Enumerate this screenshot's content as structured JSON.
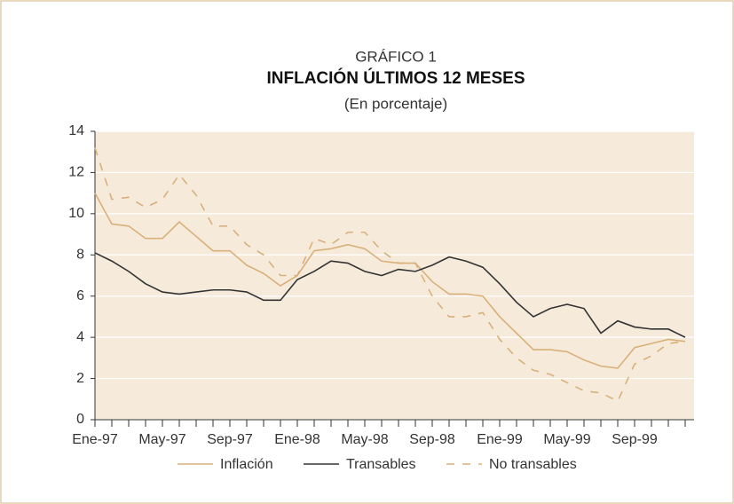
{
  "chart_data": {
    "type": "line",
    "title": "GRÁFICO 1",
    "subtitle": "INFLACIÓN ÚLTIMOS 12 MESES",
    "note": "(En porcentaje)",
    "categories": [
      "Ene-97",
      null,
      null,
      null,
      "May-97",
      null,
      null,
      null,
      "Sep-97",
      null,
      null,
      null,
      "Ene-98",
      null,
      null,
      null,
      "May-98",
      null,
      null,
      null,
      "Sep-98",
      null,
      null,
      null,
      "Ene-99",
      null,
      null,
      null,
      "May-99",
      null,
      null,
      null,
      "Sep-99",
      null,
      null,
      null
    ],
    "series": [
      {
        "name": "Inflación",
        "color": "#d9b07a",
        "dashed": false,
        "values": [
          11.0,
          9.5,
          9.4,
          8.8,
          8.8,
          9.6,
          8.9,
          8.2,
          8.2,
          7.5,
          7.1,
          6.5,
          7.0,
          8.2,
          8.3,
          8.5,
          8.3,
          7.7,
          7.6,
          7.6,
          6.7,
          6.1,
          6.1,
          6.0,
          5.0,
          4.2,
          3.4,
          3.4,
          3.3,
          2.9,
          2.6,
          2.5,
          3.5,
          3.7,
          3.9,
          3.8
        ]
      },
      {
        "name": "Transables",
        "color": "#333333",
        "dashed": false,
        "values": [
          8.1,
          7.7,
          7.2,
          6.6,
          6.2,
          6.1,
          6.2,
          6.3,
          6.3,
          6.2,
          5.8,
          5.8,
          6.8,
          7.2,
          7.7,
          7.6,
          7.2,
          7.0,
          7.3,
          7.2,
          7.5,
          7.9,
          7.7,
          7.4,
          6.6,
          5.7,
          5.0,
          5.4,
          5.6,
          5.4,
          4.2,
          4.8,
          4.5,
          4.4,
          4.4,
          4.0
        ]
      },
      {
        "name": "No transables",
        "color": "#d9b07a",
        "dashed": true,
        "values": [
          13.2,
          10.7,
          10.8,
          10.3,
          10.7,
          11.9,
          10.9,
          9.4,
          9.4,
          8.5,
          8.0,
          7.0,
          7.0,
          8.8,
          8.5,
          9.1,
          9.1,
          8.2,
          7.6,
          7.6,
          6.0,
          5.0,
          5.0,
          5.2,
          3.9,
          3.0,
          2.4,
          2.2,
          1.8,
          1.4,
          1.3,
          0.9,
          2.7,
          3.1,
          3.7,
          3.8
        ]
      }
    ],
    "ylim": [
      0,
      14
    ],
    "yticks": [
      0,
      2,
      4,
      6,
      8,
      10,
      12,
      14
    ],
    "grid": true,
    "plot_background": "#f6ebdb"
  }
}
